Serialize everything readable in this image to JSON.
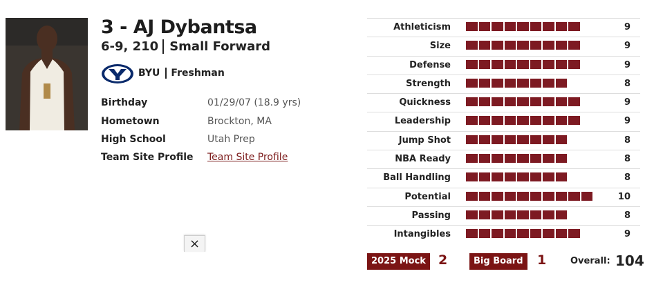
{
  "player": {
    "title": "3 - AJ Dybantsa",
    "measurements": "6-9, 210",
    "position": "Small Forward",
    "school": "BYU",
    "class": "Freshman"
  },
  "info": [
    {
      "label": "Birthday",
      "value": "01/29/07 (18.9 yrs)"
    },
    {
      "label": "Hometown",
      "value": "Brockton, MA"
    },
    {
      "label": "High School",
      "value": "Utah Prep"
    },
    {
      "label": "Team Site Profile",
      "value": "Team Site Profile"
    }
  ],
  "ratings": [
    {
      "name": "Athleticism",
      "value": 9
    },
    {
      "name": "Size",
      "value": 9
    },
    {
      "name": "Defense",
      "value": 9
    },
    {
      "name": "Strength",
      "value": 8
    },
    {
      "name": "Quickness",
      "value": 9
    },
    {
      "name": "Leadership",
      "value": 9
    },
    {
      "name": "Jump Shot",
      "value": 8
    },
    {
      "name": "NBA Ready",
      "value": 8
    },
    {
      "name": "Ball Handling",
      "value": 8
    },
    {
      "name": "Potential",
      "value": 10
    },
    {
      "name": "Passing",
      "value": 8
    },
    {
      "name": "Intangibles",
      "value": 9
    }
  ],
  "rankings": {
    "mock_label": "2025 Mock",
    "mock_value": 2,
    "board_label": "Big Board",
    "board_value": 1,
    "overall_label": "Overall:",
    "overall_value": 104
  },
  "close_button": "×"
}
